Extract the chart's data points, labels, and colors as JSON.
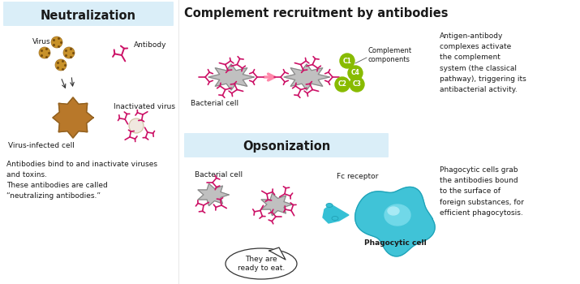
{
  "bg_color": "#ffffff",
  "neutralization_box_color": "#daeef8",
  "opsonization_box_color": "#daeef8",
  "neutralization_title": "Neutralization",
  "complement_title": "Complement recruitment by antibodies",
  "opsonization_title": "Opsonization",
  "antibody_color": "#cc1166",
  "virus_color": "#c8922a",
  "bacteria_color": "#aaaaaa",
  "phagocyte_color": "#30bcd0",
  "complement_color": "#88bb00",
  "text_color": "#1a1a1a",
  "text_small": 6.5,
  "title_fontsize": 10.5,
  "neutralization_desc": "Antibodies bind to and inactivate viruses\nand toxins.\nThese antibodies are called\n“neutralizing antibodies.”",
  "opsonization_desc": "Phagocytic cells grab\nthe antibodies bound\nto the surface of\nforeign substances, for\nefficient phagocytosis.",
  "complement_desc": "Antigen-antibody\ncomplexes activate\nthe complement\nsystem (the classical\npathway), triggering its\nantibacterial activity."
}
